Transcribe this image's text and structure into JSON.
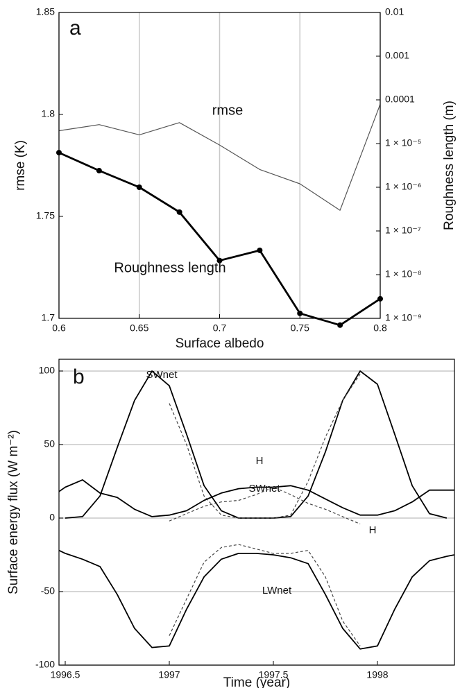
{
  "chart_data": [
    {
      "type": "line",
      "panel_label": "a",
      "x_label": "Surface albedo",
      "y_label": "rmse (K)",
      "y2_label": "Roughness length (m)",
      "x": [
        0.6,
        0.625,
        0.65,
        0.675,
        0.7,
        0.725,
        0.75,
        0.775,
        0.8
      ],
      "xlim": [
        0.6,
        0.8
      ],
      "xticks": [
        0.6,
        0.65,
        0.7,
        0.75,
        0.8
      ],
      "ylim": [
        1.7,
        1.85
      ],
      "yticks": [
        1.7,
        1.75,
        1.8,
        1.85
      ],
      "y2lim": [
        1e-09,
        0.01
      ],
      "y2log": true,
      "y2ticks": [
        {
          "value": 1e-09,
          "label": "1 × 10⁻⁹"
        },
        {
          "value": 1e-08,
          "label": "1 × 10⁻⁸"
        },
        {
          "value": 1e-07,
          "label": "1 × 10⁻⁷"
        },
        {
          "value": 1e-06,
          "label": "1 × 10⁻⁶"
        },
        {
          "value": 1e-05,
          "label": "1 × 10⁻⁵"
        },
        0.0001,
        0.001,
        0.01
      ],
      "grid": "x",
      "series": [
        {
          "name": "rmse",
          "color": "#555555",
          "values": [
            1.792,
            1.795,
            1.79,
            1.796,
            1.785,
            1.773,
            1.766,
            1.753,
            1.805
          ]
        },
        {
          "name": "Roughness length",
          "color": "#000000",
          "axis": "y2",
          "markers": true,
          "values": [
            6.2e-06,
            2.4e-06,
            1e-06,
            2.7e-07,
            2.1e-08,
            3.6e-08,
            1.3e-09,
            7e-10,
            2.8e-09
          ]
        }
      ]
    },
    {
      "type": "line",
      "panel_label": "b",
      "x_label": "Time (year)",
      "y_label": "Surface energy flux (W m⁻²)",
      "x": [
        1996.47,
        1996.5,
        1996.583,
        1996.667,
        1996.75,
        1996.833,
        1996.917,
        1997.0,
        1997.083,
        1997.167,
        1997.25,
        1997.333,
        1997.417,
        1997.5,
        1997.583,
        1997.667,
        1997.75,
        1997.833,
        1997.917,
        1998.0,
        1998.083,
        1998.167,
        1998.25,
        1998.333,
        1998.37
      ],
      "xlim": [
        1996.47,
        1998.37
      ],
      "xticks": [
        1996.5,
        1997,
        1997.5,
        1998
      ],
      "ylim": [
        -100,
        108
      ],
      "yticks": [
        -100,
        -50,
        0,
        50,
        100
      ],
      "grid": "y",
      "series": [
        {
          "name": "SWnet",
          "color": "#000000",
          "values": [
            null,
            0,
            1,
            15,
            48,
            80,
            100,
            90,
            57,
            22,
            5,
            0,
            0,
            0,
            1,
            15,
            45,
            80,
            100,
            91,
            57,
            22,
            3,
            0,
            null
          ]
        },
        {
          "name": "H",
          "color": "#000000",
          "values": [
            18,
            21,
            26,
            17,
            14,
            6,
            1,
            2,
            5,
            12,
            17,
            20,
            21,
            21,
            22,
            19,
            13,
            7,
            2,
            2,
            5,
            11,
            19,
            19,
            19
          ]
        },
        {
          "name": "LWnet",
          "color": "#000000",
          "values": [
            -22,
            -24,
            -28,
            -33,
            -52,
            -75,
            -88,
            -87,
            -62,
            -40,
            -28,
            -24,
            -24,
            -25,
            -27,
            -31,
            -52,
            -75,
            -89,
            -87,
            -62,
            -40,
            -29,
            -26,
            -25
          ]
        },
        {
          "name": "SWnet",
          "color": "#444444",
          "dashed": true,
          "values": [
            null,
            null,
            null,
            null,
            null,
            null,
            null,
            78,
            50,
            15,
            2,
            0,
            0,
            0,
            2,
            25,
            55,
            80,
            98,
            null,
            null,
            null,
            null,
            null,
            null
          ]
        },
        {
          "name": "H",
          "color": "#444444",
          "dashed": true,
          "values": [
            null,
            null,
            null,
            null,
            null,
            null,
            null,
            -2,
            3,
            8,
            11,
            12,
            16,
            21,
            16,
            10,
            6,
            1,
            -4,
            null,
            null,
            null,
            null,
            null,
            null
          ]
        },
        {
          "color": "#444444",
          "dashed": true,
          "values": [
            null,
            null,
            null,
            null,
            null,
            null,
            null,
            -80,
            -55,
            -30,
            -20,
            -18,
            -21,
            -24,
            -24,
            -22,
            -40,
            -70,
            -87,
            null,
            null,
            null,
            null,
            null,
            null
          ]
        }
      ]
    }
  ]
}
